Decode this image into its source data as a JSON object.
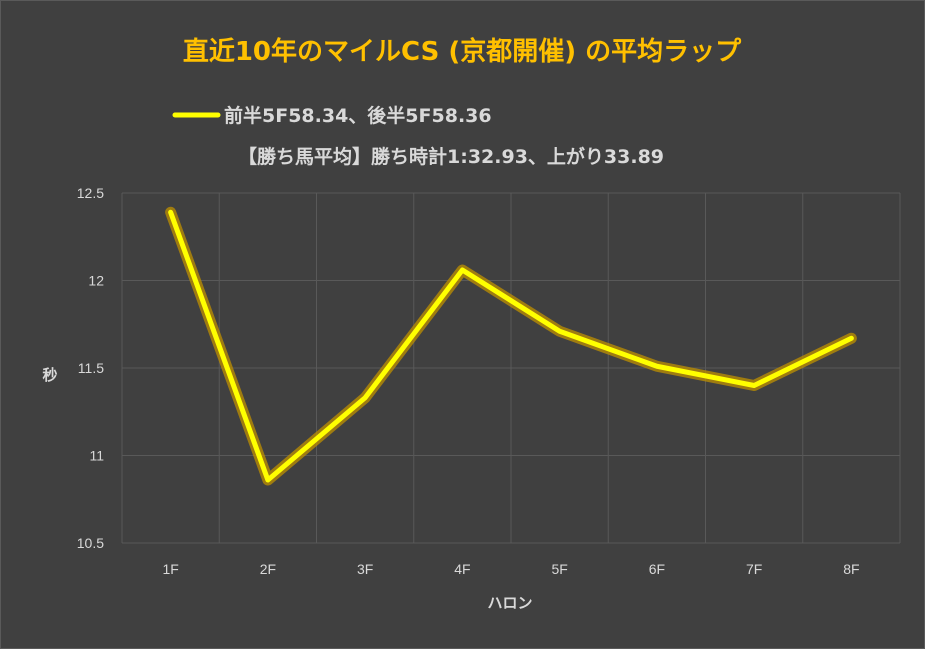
{
  "colors": {
    "background": "#404040",
    "title": "#FFC000",
    "series": "#FFFF00",
    "glow": "#BF9000",
    "text": "#D9D9D9",
    "grid": "#595959"
  },
  "chart_data": {
    "type": "line",
    "title": "直近10年のマイルCS (京都開催) の平均ラップ",
    "subtitle": "【勝ち馬平均】勝ち時計1:32.93、上がり33.89",
    "xlabel": "ハロン",
    "ylabel": "秒",
    "categories": [
      "1F",
      "2F",
      "3F",
      "4F",
      "5F",
      "6F",
      "7F",
      "8F"
    ],
    "yticks": [
      "12.5",
      "12",
      "11.5",
      "11",
      "10.5"
    ],
    "ylim": [
      10.5,
      12.5
    ],
    "grid": true,
    "legend_position": "top",
    "series": [
      {
        "name": "前半5F58.34、後半5F58.36",
        "values": [
          12.39,
          10.86,
          11.33,
          12.06,
          11.71,
          11.51,
          11.4,
          11.67
        ]
      }
    ]
  }
}
